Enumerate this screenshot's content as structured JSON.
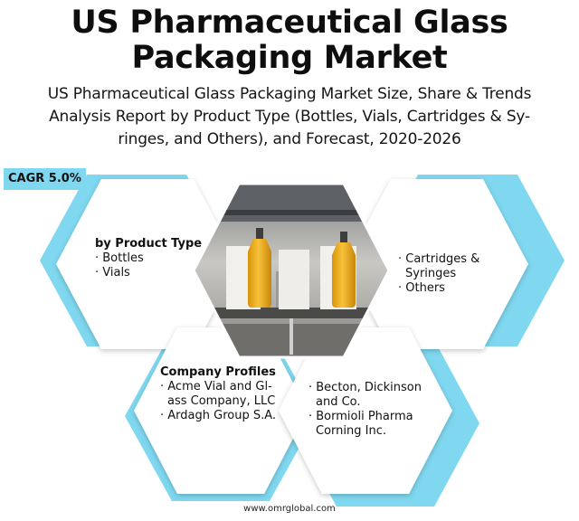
{
  "title": {
    "line1": "US Pharmaceutical Glass",
    "line2": "Packaging Market"
  },
  "subtitle": {
    "line1": "US Pharmaceutical Glass Packaging Market Size, Share & Trends",
    "line2": "Analysis Report by Product Type (Bottles, Vials, Cartridges & Sy-",
    "line3": "ringes, and Others), and Forecast, 2020-2026"
  },
  "cagr": "CAGR 5.0%",
  "product_type": {
    "heading": "by Product Type",
    "items": [
      "· Bottles",
      "· Vials"
    ]
  },
  "product_type_more": {
    "items": [
      "· Cartridges &",
      "Syringes",
      "· Others"
    ]
  },
  "company_profiles": {
    "heading": "Company Profiles",
    "items": [
      "· Acme Vial and Gl-",
      "ass Company, LLC",
      "· Ardagh Group S.A."
    ]
  },
  "company_profiles_more": {
    "items": [
      "· Becton, Dickinson",
      "and Co.",
      "· Bormioli Pharma",
      "Corning Inc."
    ]
  },
  "footer": "www.omrglobal.com",
  "colors": {
    "accent": "#7fd8f0",
    "hex_bg": "#ffffff",
    "bottle": "#f2b31e"
  }
}
